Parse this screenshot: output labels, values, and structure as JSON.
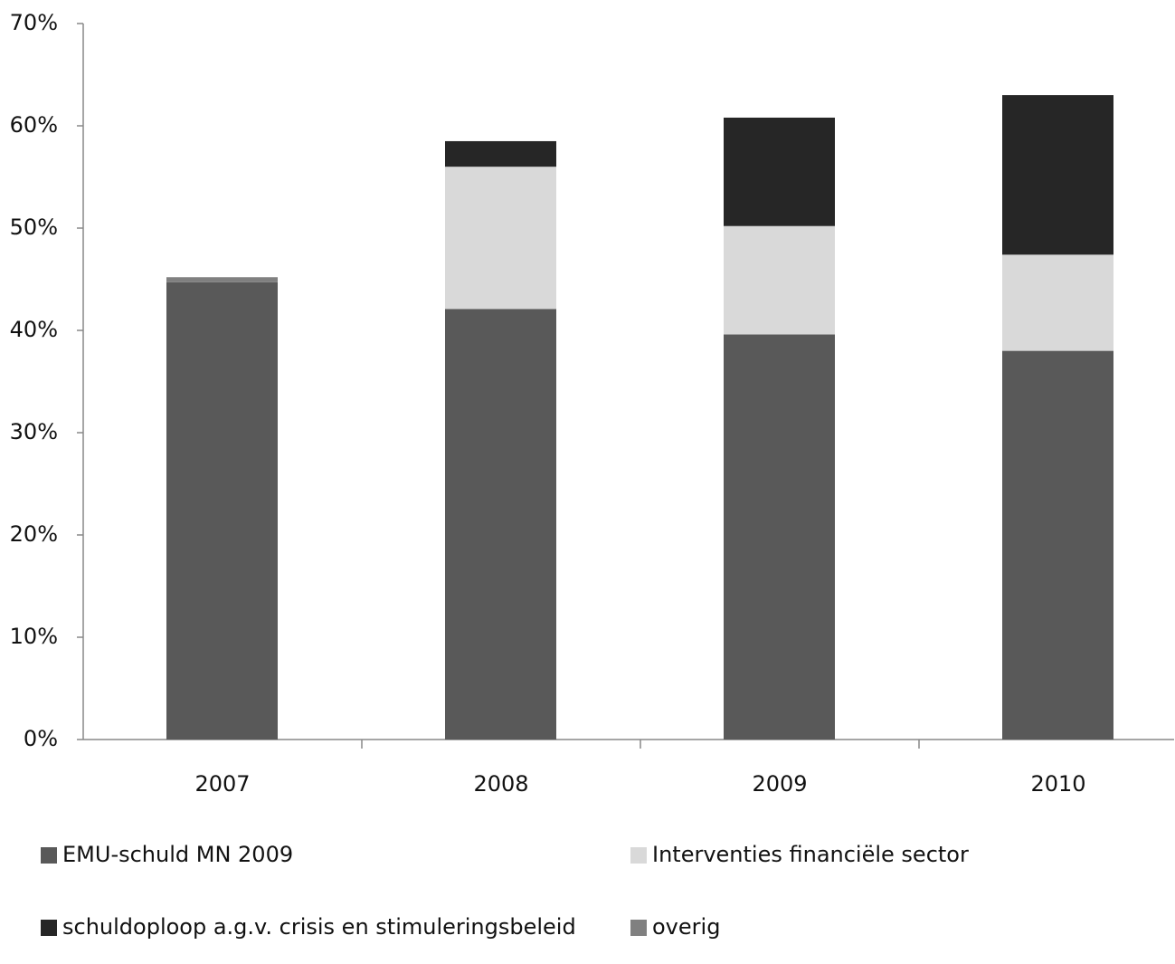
{
  "chart_data": {
    "type": "stacked_bar",
    "categories": [
      "2007",
      "2008",
      "2009",
      "2010"
    ],
    "series": [
      {
        "name": "EMU-schuld MN 2009",
        "color": "#595959",
        "values": [
          44.7,
          42.1,
          39.6,
          38.0
        ]
      },
      {
        "name": "Interventies financiële sector",
        "color": "#d9d9d9",
        "values": [
          0,
          13.9,
          10.6,
          9.4
        ]
      },
      {
        "name": "schuldoploop a.g.v. crisis en stimuleringsbeleid",
        "color": "#262626",
        "values": [
          0,
          2.5,
          10.6,
          15.6
        ]
      },
      {
        "name": "overig",
        "color": "#808080",
        "values": [
          0.5,
          0,
          0,
          0
        ]
      }
    ],
    "ylim": [
      0,
      70
    ],
    "yticks": [
      {
        "value": 0,
        "label": "0%"
      },
      {
        "value": 10,
        "label": "10%"
      },
      {
        "value": 20,
        "label": "20%"
      },
      {
        "value": 30,
        "label": "30%"
      },
      {
        "value": 40,
        "label": "40%"
      },
      {
        "value": 50,
        "label": "50%"
      },
      {
        "value": 60,
        "label": "60%"
      },
      {
        "value": 70,
        "label": "70%"
      }
    ],
    "grid": false,
    "legend": "bottom"
  }
}
